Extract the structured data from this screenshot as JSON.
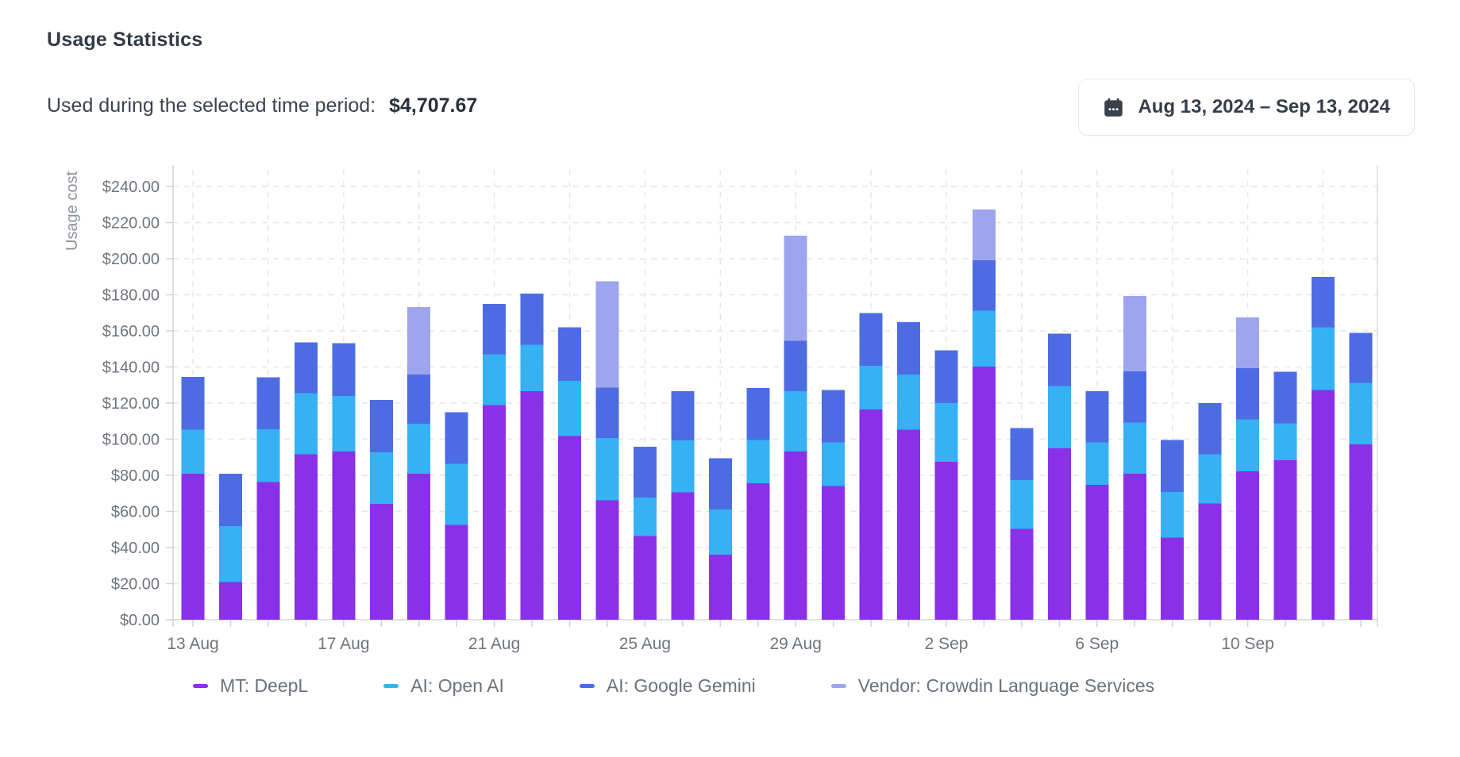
{
  "header": {
    "title": "Usage Statistics",
    "subtitle_label": "Used during the selected time period:",
    "subtitle_value": "$4,707.67",
    "date_range_button": {
      "icon": "calendar-icon",
      "label": "Aug 13, 2024 – Sep 13, 2024"
    }
  },
  "chart_data": {
    "type": "bar",
    "stacked": true,
    "title": "",
    "xlabel": "",
    "ylabel": "Usage cost",
    "ylim": [
      0,
      240
    ],
    "ytick_step": 20,
    "ytick_prefix": "$",
    "ytick_decimals": 2,
    "xtick_label_every": 4,
    "grid": {
      "horizontal": "dashed",
      "vertical": "dashed every 2 categories"
    },
    "legend_position": "bottom",
    "categories": [
      "13 Aug",
      "14 Aug",
      "15 Aug",
      "16 Aug",
      "17 Aug",
      "18 Aug",
      "19 Aug",
      "20 Aug",
      "21 Aug",
      "22 Aug",
      "23 Aug",
      "24 Aug",
      "25 Aug",
      "26 Aug",
      "27 Aug",
      "28 Aug",
      "29 Aug",
      "30 Aug",
      "31 Aug",
      "1 Sep",
      "2 Sep",
      "3 Sep",
      "4 Sep",
      "5 Sep",
      "6 Sep",
      "7 Sep",
      "8 Sep",
      "9 Sep",
      "10 Sep",
      "11 Sep",
      "12 Sep",
      "13 Sep"
    ],
    "series": [
      {
        "name": "MT: DeepL",
        "color": "#8a30e8",
        "values": [
          80.8,
          20.9,
          76.2,
          91.6,
          93.1,
          64.2,
          80.8,
          52.6,
          118.8,
          126.7,
          101.7,
          66.1,
          46.3,
          70.5,
          36.0,
          75.6,
          93.1,
          74.0,
          116.4,
          105.3,
          87.4,
          140.2,
          50.4,
          95.0,
          74.8,
          80.8,
          45.5,
          64.5,
          82.1,
          88.4,
          127.2,
          97.1
        ]
      },
      {
        "name": "AI: Open AI",
        "color": "#35b1f4",
        "values": [
          24.5,
          30.9,
          29.3,
          33.9,
          30.8,
          28.5,
          27.7,
          33.7,
          28.2,
          25.7,
          30.5,
          34.5,
          21.3,
          28.8,
          25.0,
          23.9,
          33.6,
          24.2,
          24.3,
          30.6,
          32.7,
          30.9,
          26.9,
          34.4,
          23.4,
          28.5,
          25.3,
          27.1,
          28.8,
          20.4,
          34.7,
          34.1
        ]
      },
      {
        "name": "AI: Google Gemini",
        "color": "#4d6ce4",
        "values": [
          29.2,
          29.0,
          28.7,
          28.2,
          29.3,
          29.0,
          27.3,
          28.6,
          28.0,
          28.2,
          29.7,
          28.0,
          28.2,
          27.4,
          28.5,
          28.8,
          27.8,
          29.0,
          29.1,
          28.9,
          29.1,
          28.1,
          28.8,
          29.0,
          28.5,
          28.2,
          28.7,
          28.5,
          28.5,
          28.5,
          27.9,
          27.7
        ]
      },
      {
        "name": "Vendor: Crowdin Language Services",
        "color": "#9da5ee",
        "values": [
          0,
          0,
          0,
          0,
          0,
          0,
          37.4,
          0,
          0,
          0,
          0,
          58.8,
          0,
          0,
          0,
          0,
          58.3,
          0,
          0,
          0,
          0,
          28.1,
          0,
          0,
          0,
          41.8,
          0,
          0,
          28.0,
          0,
          0,
          0
        ]
      }
    ]
  },
  "colors": {
    "axis_text": "#6f757c",
    "axis_title_text": "#8d939a",
    "frame_line": "#d4d7da",
    "grid_line": "#e5e6e9",
    "tick_line": "#cfd2d6",
    "title_text": "#303b45",
    "legend_text": "#6b727b"
  }
}
